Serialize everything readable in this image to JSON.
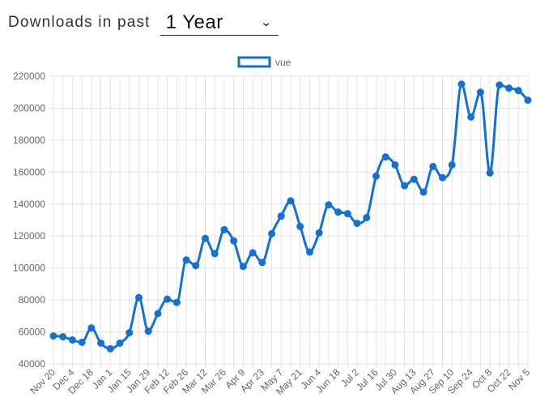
{
  "header": {
    "label": "Downloads in past",
    "period_select": {
      "value": "1 Year"
    }
  },
  "colors": {
    "series": "#1172d4",
    "grid": "#e3e3e3",
    "tick_text": "#666666"
  },
  "chart_data": {
    "type": "line",
    "title": "",
    "xlabel": "",
    "ylabel": "",
    "ylim": [
      40000,
      220000
    ],
    "y_ticks": [
      40000,
      60000,
      80000,
      100000,
      120000,
      140000,
      160000,
      180000,
      200000,
      220000
    ],
    "grid": true,
    "legend": "top-center",
    "x_tick_labels": [
      "Nov 20",
      "Dec 4",
      "Dec 18",
      "Jan 1",
      "Jan 15",
      "Jan 29",
      "Feb 12",
      "Feb 26",
      "Mar 12",
      "Mar 26",
      "Apr 9",
      "Apr 23",
      "May 7",
      "May 21",
      "Jun 4",
      "Jun 18",
      "Jul 2",
      "Jul 16",
      "Jul 30",
      "Aug 13",
      "Aug 27",
      "Sep 10",
      "Sep 24",
      "Oct 8",
      "Oct 22",
      "Nov 5"
    ],
    "x": [
      "Nov 20",
      "Nov 27",
      "Dec 4",
      "Dec 11",
      "Dec 18",
      "Dec 25",
      "Jan 1",
      "Jan 8",
      "Jan 15",
      "Jan 22",
      "Jan 29",
      "Feb 5",
      "Feb 12",
      "Feb 19",
      "Feb 26",
      "Mar 5",
      "Mar 12",
      "Mar 19",
      "Mar 26",
      "Apr 2",
      "Apr 9",
      "Apr 16",
      "Apr 23",
      "Apr 30",
      "May 7",
      "May 14",
      "May 21",
      "May 28",
      "Jun 4",
      "Jun 11",
      "Jun 18",
      "Jun 25",
      "Jul 2",
      "Jul 9",
      "Jul 16",
      "Jul 23",
      "Jul 30",
      "Aug 6",
      "Aug 13",
      "Aug 20",
      "Aug 27",
      "Sep 3",
      "Sep 10",
      "Sep 17",
      "Sep 24",
      "Oct 1",
      "Oct 8",
      "Oct 15",
      "Oct 22",
      "Oct 29",
      "Nov 5"
    ],
    "series": [
      {
        "name": "vue",
        "values": [
          57500,
          57000,
          55000,
          53500,
          62500,
          53000,
          49500,
          53000,
          59500,
          81500,
          60500,
          71500,
          80500,
          78500,
          105000,
          101500,
          118500,
          109000,
          124000,
          117000,
          101000,
          109500,
          103500,
          121500,
          132500,
          142000,
          126000,
          110000,
          122000,
          139500,
          135000,
          134000,
          128000,
          131500,
          157500,
          169500,
          164500,
          151500,
          155500,
          147500,
          163500,
          156500,
          164500,
          215000,
          194500,
          210000,
          159500,
          214500,
          212500,
          211000,
          205000
        ]
      }
    ]
  }
}
